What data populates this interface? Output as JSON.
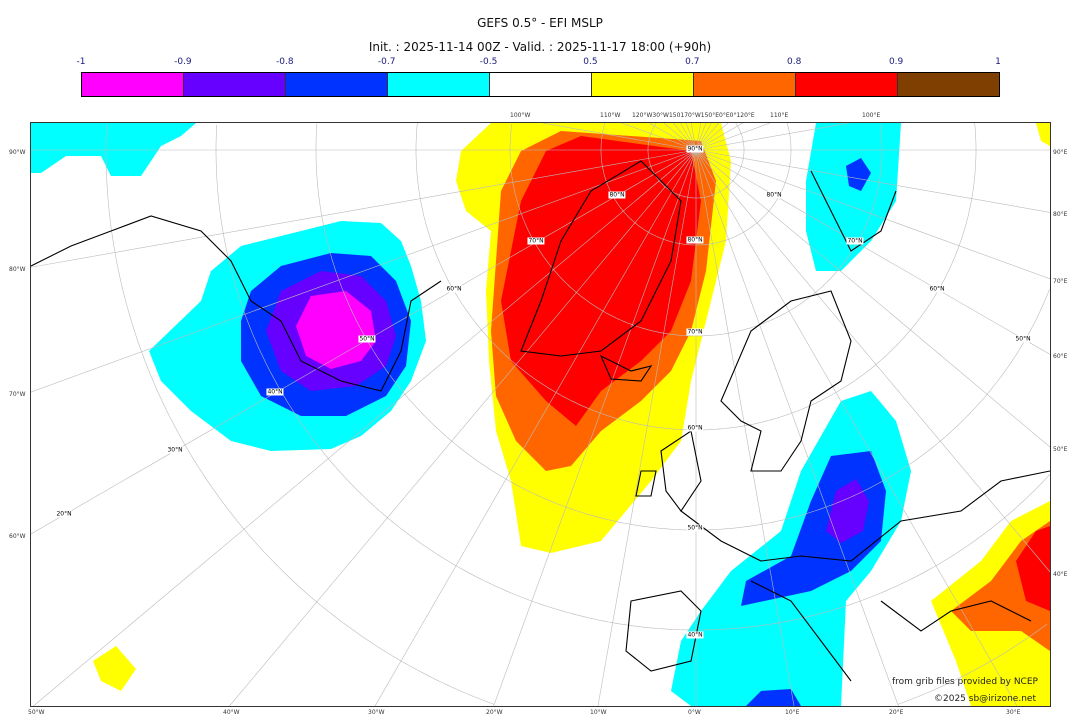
{
  "title": "GEFS 0.5° - EFI MSLP",
  "subtitle": "Init. : 2025-11-14 00Z - Valid. : 2025-11-17 18:00 (+90h)",
  "colorbar": {
    "ticks": [
      "-1",
      "-0.9",
      "-0.8",
      "-0.7",
      "-0.5",
      "0.5",
      "0.7",
      "0.8",
      "0.9",
      "1"
    ],
    "colors": [
      "#ff00ff",
      "#6600ff",
      "#0033ff",
      "#00ffff",
      "#ffffff",
      "#ffff00",
      "#ff6600",
      "#ff0000",
      "#7f3f00"
    ]
  },
  "map": {
    "left_labels": [
      "90°W",
      "80°W",
      "70°W",
      "60°W"
    ],
    "right_labels": [
      "90°E",
      "80°E",
      "70°E",
      "60°E",
      "50°E",
      "40°E"
    ],
    "bottom_labels": [
      "50°W",
      "40°W",
      "30°W",
      "20°W",
      "10°W",
      "0°W",
      "10°E",
      "20°E",
      "30°E"
    ],
    "top_labels": [
      "100°W",
      "110°W",
      "120°W30°W150170°W150°E0°E0°120°E",
      "110°E",
      "100°E"
    ],
    "inner_labels": [
      "90°N",
      "80°N",
      "70°N",
      "80°N",
      "70°N",
      "60°N",
      "50°N",
      "40°N",
      "30°N",
      "20°N",
      "60°N",
      "50°N",
      "40°N",
      "80°N",
      "70°N",
      "60°N",
      "50°N"
    ]
  },
  "credits": {
    "line1": "from grib files provided by NCEP",
    "line2": "©2025 sb@irizone.net"
  }
}
